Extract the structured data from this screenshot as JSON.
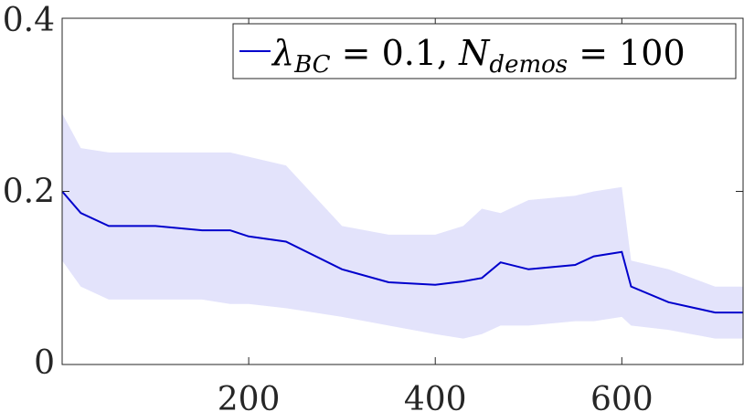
{
  "chart_data": {
    "type": "line",
    "title": "",
    "xlabel": "",
    "ylabel": "",
    "xlim": [
      0,
      730
    ],
    "ylim": [
      0,
      0.4
    ],
    "xticks": [
      200,
      400,
      600
    ],
    "yticks": [
      0,
      0.2,
      0.4
    ],
    "xtick_labels": [
      "200",
      "400",
      "600"
    ],
    "ytick_labels": [
      "0",
      "0.2",
      "0.4"
    ],
    "grid": false,
    "legend_position": "top-right",
    "colors": {
      "line": "#0000cc",
      "band": "#e3e3fb",
      "axis": "#262626"
    },
    "legend": {
      "lambda": "λ",
      "lambda_sub": "BC",
      "eq1": " = 0.1,  ",
      "n": "N",
      "n_sub": "demos",
      "eq2": " = 100"
    },
    "series": [
      {
        "x": [
          0,
          20,
          50,
          100,
          150,
          180,
          200,
          240,
          300,
          350,
          400,
          430,
          450,
          470,
          500,
          550,
          570,
          600,
          610,
          650,
          700,
          730
        ],
        "mean": [
          0.2,
          0.175,
          0.16,
          0.16,
          0.155,
          0.155,
          0.148,
          0.142,
          0.11,
          0.095,
          0.092,
          0.096,
          0.1,
          0.118,
          0.11,
          0.115,
          0.125,
          0.13,
          0.09,
          0.072,
          0.06,
          0.06
        ],
        "upper": [
          0.29,
          0.25,
          0.245,
          0.245,
          0.245,
          0.245,
          0.24,
          0.23,
          0.16,
          0.15,
          0.15,
          0.16,
          0.18,
          0.175,
          0.19,
          0.195,
          0.2,
          0.205,
          0.12,
          0.11,
          0.09,
          0.09
        ],
        "lower": [
          0.12,
          0.09,
          0.075,
          0.075,
          0.075,
          0.07,
          0.07,
          0.065,
          0.055,
          0.045,
          0.035,
          0.03,
          0.035,
          0.045,
          0.045,
          0.05,
          0.05,
          0.055,
          0.045,
          0.04,
          0.03,
          0.03
        ]
      }
    ]
  }
}
